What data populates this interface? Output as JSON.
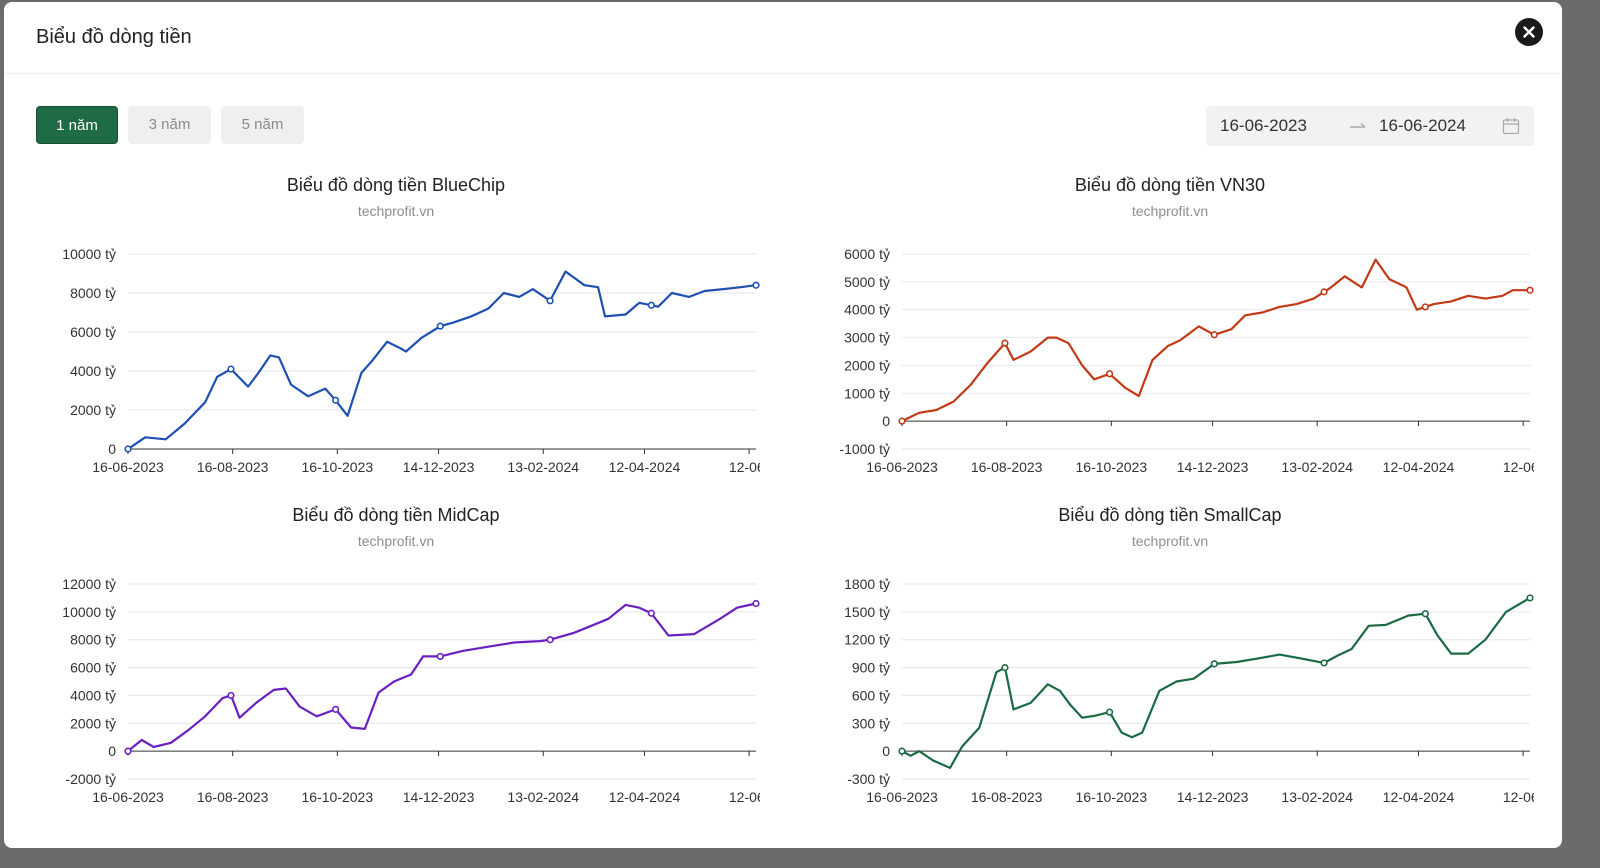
{
  "header": {
    "title": "Biểu đồ dòng tiền",
    "close_icon": "close-icon"
  },
  "toolbar": {
    "tabs": [
      {
        "label": "1 năm",
        "active": true
      },
      {
        "label": "3 năm",
        "active": false
      },
      {
        "label": "5 năm",
        "active": false
      }
    ],
    "range": {
      "start": "16-06-2023",
      "end": "16-06-2024",
      "arrow_icon": "arrow-right-icon",
      "calendar_icon": "calendar-icon"
    }
  },
  "colors": {
    "accent": "#1f6b45",
    "bluechip": "#1f4fb0",
    "vn30": "#c23a15",
    "midcap": "#6b1fc2",
    "smallcap": "#1b6a44"
  },
  "chart_data": [
    {
      "id": "bluechip",
      "type": "line",
      "title": "Biểu đồ dòng tiền BlueChip",
      "subtitle": "techprofit.vn",
      "x_ticks": [
        "16-06-2023",
        "16-08-2023",
        "16-10-2023",
        "14-12-2023",
        "13-02-2024",
        "12-04-2024",
        "12-06-"
      ],
      "y_ticks": [
        "0",
        "2000 tỷ",
        "4000 tỷ",
        "6000 tỷ",
        "8000 tỷ",
        "10000 tỷ"
      ],
      "ylim": [
        0,
        10000
      ],
      "y_unit": "tỷ",
      "x_days": [
        0,
        10,
        22,
        33,
        45,
        52,
        60,
        70,
        76,
        83,
        88,
        95,
        105,
        115,
        121,
        128,
        136,
        142,
        151,
        158,
        162,
        171,
        182,
        190,
        200,
        210,
        219,
        228,
        236,
        246,
        255,
        266,
        274,
        278,
        290,
        298,
        309,
        317,
        327,
        336,
        347,
        357,
        366
      ],
      "values": [
        0,
        600,
        500,
        1300,
        2400,
        3700,
        4100,
        3200,
        3900,
        4800,
        4700,
        3300,
        2700,
        3100,
        2500,
        1700,
        3900,
        4500,
        5500,
        5200,
        5000,
        5700,
        6300,
        6500,
        6800,
        7200,
        8000,
        7800,
        8200,
        7600,
        9100,
        8400,
        8300,
        6800,
        6900,
        7500,
        7300,
        8000,
        7800,
        8100,
        8200,
        8300,
        8400
      ],
      "markers": [
        0,
        60,
        121,
        182,
        246,
        305,
        366
      ]
    },
    {
      "id": "vn30",
      "type": "line",
      "title": "Biểu đồ dòng tiền VN30",
      "subtitle": "techprofit.vn",
      "x_ticks": [
        "16-06-2023",
        "16-08-2023",
        "16-10-2023",
        "14-12-2023",
        "13-02-2024",
        "12-04-2024",
        "12-06-"
      ],
      "y_ticks": [
        "-1000 tỷ",
        "0",
        "1000 tỷ",
        "2000 tỷ",
        "3000 tỷ",
        "4000 tỷ",
        "5000 tỷ",
        "6000 tỷ"
      ],
      "ylim": [
        -1000,
        6000
      ],
      "y_unit": "tỷ",
      "x_days": [
        0,
        10,
        20,
        30,
        40,
        50,
        60,
        65,
        75,
        85,
        90,
        97,
        105,
        112,
        121,
        130,
        138,
        146,
        155,
        162,
        173,
        182,
        192,
        200,
        210,
        220,
        230,
        240,
        250,
        258,
        268,
        276,
        284,
        294,
        300,
        310,
        320,
        330,
        340,
        350,
        356,
        366
      ],
      "values": [
        0,
        300,
        400,
        700,
        1300,
        2100,
        2800,
        2200,
        2500,
        3000,
        3000,
        2800,
        2000,
        1500,
        1700,
        1200,
        900,
        2200,
        2700,
        2900,
        3400,
        3100,
        3300,
        3800,
        3900,
        4100,
        4200,
        4400,
        4800,
        5200,
        4800,
        5800,
        5100,
        4800,
        4000,
        4200,
        4300,
        4500,
        4400,
        4500,
        4700,
        4700
      ],
      "markers": [
        0,
        60,
        121,
        182,
        246,
        305,
        366
      ]
    },
    {
      "id": "midcap",
      "type": "line",
      "title": "Biểu đồ dòng tiền MidCap",
      "subtitle": "techprofit.vn",
      "x_ticks": [
        "16-06-2023",
        "16-08-2023",
        "16-10-2023",
        "14-12-2023",
        "13-02-2024",
        "12-04-2024",
        "12-06-"
      ],
      "y_ticks": [
        "-2000 tỷ",
        "0",
        "2000 tỷ",
        "4000 tỷ",
        "6000 tỷ",
        "8000 tỷ",
        "10000 tỷ",
        "12000 tỷ"
      ],
      "ylim": [
        -2000,
        12000
      ],
      "y_unit": "tỷ",
      "x_days": [
        0,
        8,
        15,
        25,
        35,
        45,
        55,
        60,
        65,
        75,
        85,
        92,
        100,
        110,
        121,
        130,
        138,
        146,
        155,
        165,
        172,
        182,
        195,
        210,
        225,
        240,
        246,
        260,
        270,
        280,
        290,
        298,
        305,
        315,
        330,
        345,
        355,
        366
      ],
      "values": [
        0,
        800,
        300,
        600,
        1500,
        2500,
        3800,
        4000,
        2400,
        3500,
        4400,
        4500,
        3200,
        2500,
        3000,
        1700,
        1600,
        4200,
        5000,
        5500,
        6800,
        6800,
        7200,
        7500,
        7800,
        7900,
        8000,
        8500,
        9000,
        9500,
        10500,
        10300,
        9900,
        8300,
        8400,
        9500,
        10300,
        10600
      ],
      "markers": [
        0,
        60,
        121,
        182,
        246,
        305,
        366
      ]
    },
    {
      "id": "smallcap",
      "type": "line",
      "title": "Biểu đồ dòng tiền SmallCap",
      "subtitle": "techprofit.vn",
      "x_ticks": [
        "16-06-2023",
        "16-08-2023",
        "16-10-2023",
        "14-12-2023",
        "13-02-2024",
        "12-04-2024",
        "12-06-"
      ],
      "y_ticks": [
        "-300 tỷ",
        "0",
        "300 tỷ",
        "600 tỷ",
        "900 tỷ",
        "1200 tỷ",
        "1500 tỷ",
        "1800 tỷ"
      ],
      "ylim": [
        -300,
        1800
      ],
      "y_unit": "tỷ",
      "x_days": [
        0,
        5,
        10,
        18,
        28,
        35,
        45,
        50,
        55,
        60,
        65,
        75,
        85,
        92,
        98,
        105,
        112,
        121,
        128,
        134,
        140,
        150,
        160,
        170,
        182,
        195,
        208,
        220,
        232,
        246,
        254,
        262,
        272,
        282,
        295,
        305,
        312,
        320,
        330,
        340,
        352,
        366
      ],
      "values": [
        0,
        -50,
        0,
        -100,
        -180,
        50,
        250,
        550,
        850,
        900,
        450,
        520,
        720,
        650,
        500,
        360,
        380,
        420,
        200,
        150,
        200,
        650,
        750,
        780,
        940,
        960,
        1000,
        1040,
        1000,
        950,
        1030,
        1100,
        1350,
        1360,
        1460,
        1480,
        1250,
        1050,
        1050,
        1200,
        1500,
        1650
      ],
      "markers": [
        0,
        60,
        121,
        182,
        246,
        305,
        366
      ]
    }
  ]
}
